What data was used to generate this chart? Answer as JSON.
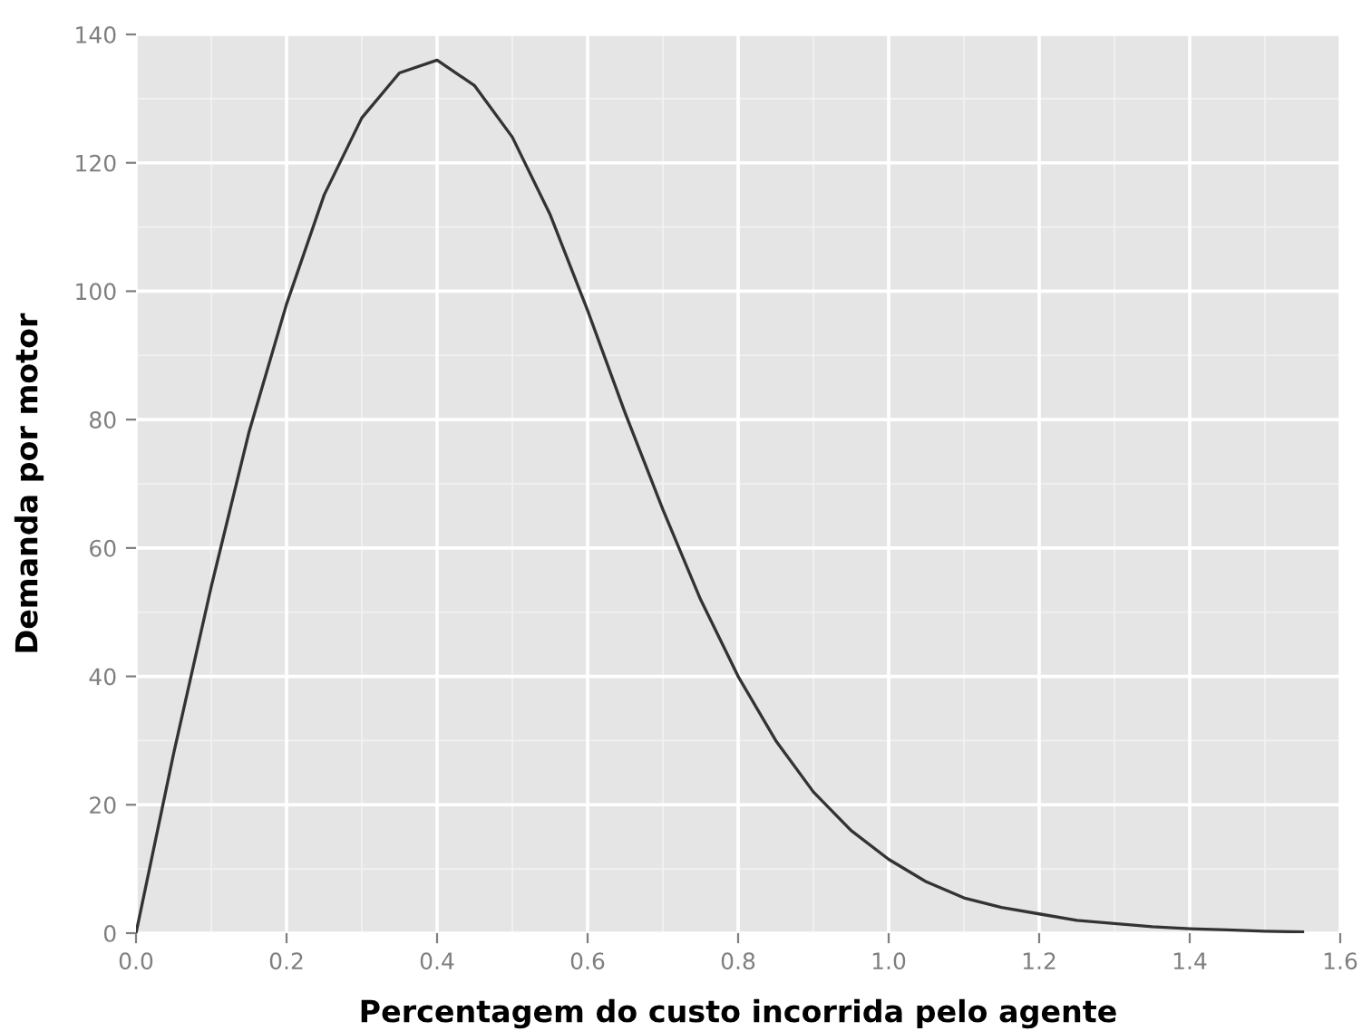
{
  "chart_data": {
    "type": "line",
    "xlabel": "Percentagem do custo incorrida pelo agente",
    "ylabel": "Demanda por motor",
    "x": [
      0,
      0.05,
      0.1,
      0.15,
      0.2,
      0.25,
      0.3,
      0.35,
      0.4,
      0.45,
      0.5,
      0.55,
      0.6,
      0.65,
      0.7,
      0.75,
      0.8,
      0.85,
      0.9,
      0.95,
      1.0,
      1.05,
      1.1,
      1.15,
      1.2,
      1.25,
      1.3,
      1.35,
      1.4,
      1.45,
      1.5,
      1.55
    ],
    "series": [
      {
        "color": "#333333",
        "values": [
          0,
          28,
          54,
          78,
          98,
          115,
          127,
          134,
          136,
          132,
          124,
          112,
          97,
          81,
          66,
          52,
          40,
          30,
          22,
          16,
          11.5,
          8,
          5.5,
          4,
          3,
          2,
          1.5,
          1,
          0.7,
          0.5,
          0.3,
          0.2
        ]
      }
    ],
    "xlim": [
      0,
      1.6
    ],
    "xticks": [
      {
        "value": 0,
        "label": "0.0"
      },
      0.2,
      0.4,
      0.6,
      0.8,
      {
        "value": 1,
        "label": "1.0"
      },
      1.2,
      1.4,
      1.6
    ],
    "ylim": [
      0,
      140
    ],
    "yticks": [
      0,
      20,
      40,
      60,
      80,
      100,
      120,
      140
    ],
    "grid": true
  }
}
